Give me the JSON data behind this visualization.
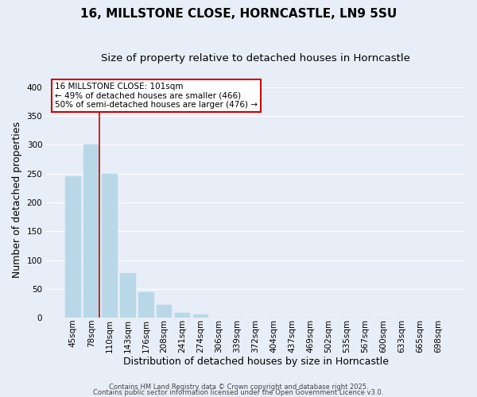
{
  "title": "16, MILLSTONE CLOSE, HORNCASTLE, LN9 5SU",
  "subtitle": "Size of property relative to detached houses in Horncastle",
  "xlabel": "Distribution of detached houses by size in Horncastle",
  "ylabel": "Number of detached properties",
  "bar_labels": [
    "45sqm",
    "78sqm",
    "110sqm",
    "143sqm",
    "176sqm",
    "208sqm",
    "241sqm",
    "274sqm",
    "306sqm",
    "339sqm",
    "372sqm",
    "404sqm",
    "437sqm",
    "469sqm",
    "502sqm",
    "535sqm",
    "567sqm",
    "600sqm",
    "633sqm",
    "665sqm",
    "698sqm"
  ],
  "bar_values": [
    245,
    300,
    250,
    78,
    45,
    22,
    9,
    6,
    0,
    0,
    0,
    0,
    0,
    0,
    0,
    0,
    0,
    0,
    0,
    0,
    1
  ],
  "bar_color": "#b8d8e8",
  "bar_edge_color": "#b8d8e8",
  "vline_color": "#cc0000",
  "annotation_title": "16 MILLSTONE CLOSE: 101sqm",
  "annotation_line2": "← 49% of detached houses are smaller (466)",
  "annotation_line3": "50% of semi-detached houses are larger (476) →",
  "annotation_box_color": "#cc0000",
  "ylim": [
    0,
    410
  ],
  "yticks": [
    0,
    50,
    100,
    150,
    200,
    250,
    300,
    350,
    400
  ],
  "bg_color": "#e8eef8",
  "grid_color": "#ffffff",
  "footer_line1": "Contains HM Land Registry data © Crown copyright and database right 2025.",
  "footer_line2": "Contains public sector information licensed under the Open Government Licence v3.0.",
  "title_fontsize": 11,
  "subtitle_fontsize": 9.5,
  "axis_fontsize": 9,
  "tick_fontsize": 7.5,
  "annotation_fontsize": 7.5,
  "footer_fontsize": 6.0
}
